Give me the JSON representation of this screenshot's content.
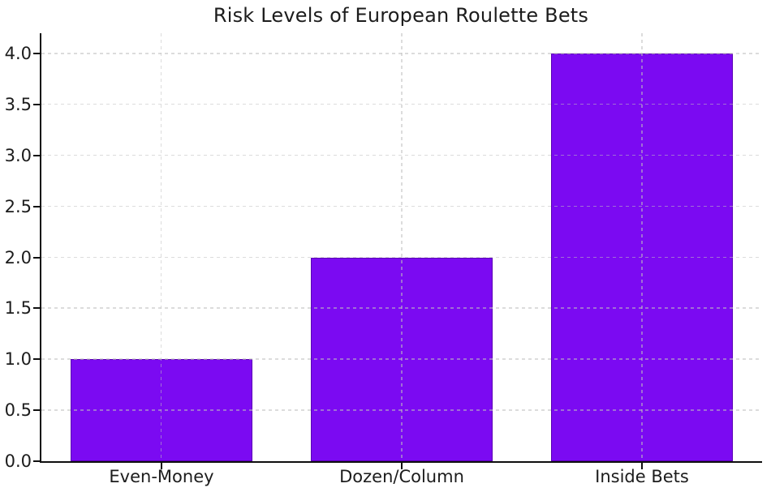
{
  "chart_data": {
    "type": "bar",
    "title": "Risk Levels of European Roulette Bets",
    "categories": [
      "Even-Money",
      "Dozen/Column",
      "Inside Bets"
    ],
    "values": [
      1,
      2,
      4
    ],
    "ytick_labels": [
      "0.0",
      "0.5",
      "1.0",
      "1.5",
      "2.0",
      "2.5",
      "3.0",
      "3.5",
      "4.0"
    ],
    "ylim": [
      0,
      4.2
    ],
    "xlabel": "",
    "ylabel": "",
    "grid": "dashed-both-axes-above-bars",
    "legend": "none",
    "bar_width_fraction": 0.755,
    "colors": {
      "bar_fill": "#7B0AF2",
      "bar_edge": "#5A00B5",
      "grid_line": "#BFBFBF",
      "axis_line": "#0F0F0F",
      "text": "#1C1C1C",
      "background": "#FFFFFF"
    }
  }
}
